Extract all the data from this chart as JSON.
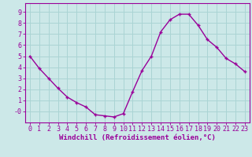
{
  "x": [
    0,
    1,
    2,
    3,
    4,
    5,
    6,
    7,
    8,
    9,
    10,
    11,
    12,
    13,
    14,
    15,
    16,
    17,
    18,
    19,
    20,
    21,
    22,
    23
  ],
  "y": [
    5.0,
    3.9,
    3.0,
    2.1,
    1.3,
    0.8,
    0.4,
    -0.3,
    -0.4,
    -0.5,
    -0.2,
    1.8,
    3.7,
    5.0,
    7.2,
    8.3,
    8.8,
    8.8,
    7.8,
    6.5,
    5.8,
    4.8,
    4.3,
    3.6
  ],
  "line_color": "#990099",
  "marker": "+",
  "bg_color": "#cce8e8",
  "grid_color": "#aad4d4",
  "xlabel": "Windchill (Refroidissement éolien,°C)",
  "xlim": [
    -0.5,
    23.5
  ],
  "ylim": [
    -1.0,
    9.8
  ],
  "xticks": [
    0,
    1,
    2,
    3,
    4,
    5,
    6,
    7,
    8,
    9,
    10,
    11,
    12,
    13,
    14,
    15,
    16,
    17,
    18,
    19,
    20,
    21,
    22,
    23
  ],
  "yticks": [
    0,
    1,
    2,
    3,
    4,
    5,
    6,
    7,
    8,
    9
  ],
  "ytick_labels": [
    "-0",
    "1",
    "2",
    "3",
    "4",
    "5",
    "6",
    "7",
    "8",
    "9"
  ],
  "xlabel_fontsize": 6.5,
  "tick_fontsize": 6.0,
  "linewidth": 1.0,
  "markersize": 3.5,
  "markeredgewidth": 1.0
}
